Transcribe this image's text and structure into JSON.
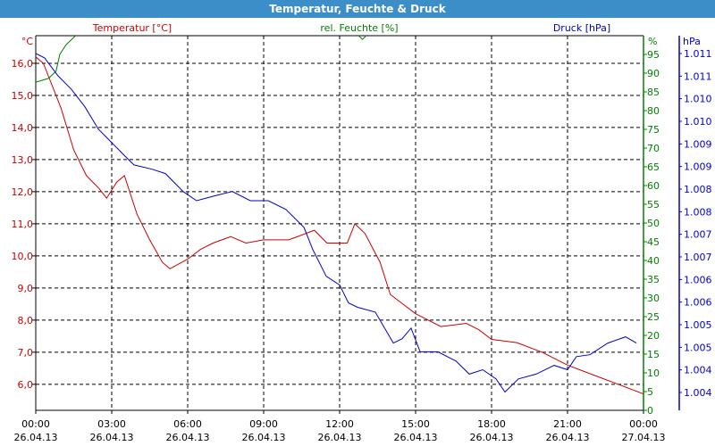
{
  "window": {
    "title": "Temperatur, Feuchte & Druck"
  },
  "chart_data": {
    "type": "line",
    "title": "Temperatur, Feuchte & Druck",
    "series_labels": {
      "temperature": "Temperatur [°C]",
      "humidity": "rel. Feuchte [%]",
      "pressure": "Druck [hPa]"
    },
    "axes": {
      "temperature": {
        "unit": "°C",
        "range": [
          5.19,
          16.86
        ],
        "ticks": [
          "16,0",
          "15,0",
          "14,0",
          "13,0",
          "12,0",
          "11,0",
          "10,0",
          "9,0",
          "8,0",
          "7,0",
          "6,0"
        ],
        "tick_values": [
          16,
          15,
          14,
          13,
          12,
          11,
          10,
          9,
          8,
          7,
          6
        ],
        "color": "#cc0000"
      },
      "humidity": {
        "unit": "%",
        "range": [
          0,
          100
        ],
        "ticks": [
          "95",
          "90",
          "85",
          "80",
          "75",
          "70",
          "65",
          "60",
          "55",
          "50",
          "45",
          "40",
          "35",
          "30",
          "25",
          "20",
          "15",
          "10",
          "5",
          "0"
        ],
        "tick_values": [
          95,
          90,
          85,
          80,
          75,
          70,
          65,
          60,
          55,
          50,
          45,
          40,
          35,
          30,
          25,
          20,
          15,
          10,
          5,
          0
        ],
        "color": "#008000"
      },
      "pressure": {
        "unit": "hPa",
        "range": [
          1.004,
          1.011
        ],
        "ticks": [
          "1.011",
          "1.011",
          "1.010",
          "1.010",
          "1.009",
          "1.009",
          "1.008",
          "1.008",
          "1.007",
          "1.007",
          "1.006",
          "1.006",
          "1.005",
          "1.005",
          "1.004",
          "1.004"
        ],
        "color": "#0000cc"
      },
      "x": {
        "range_hours": [
          0,
          24
        ],
        "ticks": [
          {
            "time": "00:00",
            "date": "26.04.13"
          },
          {
            "time": "03:00",
            "date": "26.04.13"
          },
          {
            "time": "06:00",
            "date": "26.04.13"
          },
          {
            "time": "09:00",
            "date": "26.04.13"
          },
          {
            "time": "12:00",
            "date": "26.04.13"
          },
          {
            "time": "15:00",
            "date": "26.04.13"
          },
          {
            "time": "18:00",
            "date": "26.04.13"
          },
          {
            "time": "21:00",
            "date": "26.04.13"
          },
          {
            "time": "00:00",
            "date": "27.04.13"
          }
        ]
      }
    },
    "grid": true,
    "series": [
      {
        "name": "Temperatur",
        "color": "#cc0000",
        "x": [
          0,
          0.3,
          0.6,
          1.0,
          1.5,
          2.0,
          2.5,
          2.8,
          3.2,
          3.5,
          4.0,
          4.5,
          5.0,
          5.3,
          6.0,
          6.5,
          7.0,
          7.7,
          8.3,
          9.0,
          10.0,
          11.0,
          11.5,
          12.0,
          12.3,
          12.6,
          13.0,
          13.6,
          14.0,
          14.5,
          15.0,
          15.5,
          16.0,
          17.0,
          17.5,
          18.0,
          19.0,
          20.0,
          21.0,
          22.0,
          23.0,
          24.0
        ],
        "y": [
          16.2,
          16.0,
          15.4,
          14.6,
          13.3,
          12.5,
          12.1,
          11.8,
          12.3,
          12.5,
          11.3,
          10.5,
          9.8,
          9.6,
          9.9,
          10.2,
          10.4,
          10.6,
          10.4,
          10.5,
          10.5,
          10.8,
          10.4,
          10.4,
          10.4,
          11.0,
          10.7,
          9.8,
          8.8,
          8.5,
          8.2,
          8.0,
          7.8,
          7.9,
          7.7,
          7.4,
          7.3,
          7.0,
          6.6,
          6.3,
          6.0,
          5.7
        ]
      },
      {
        "name": "rel. Feuchte",
        "color": "#008000",
        "x": [
          0,
          0.5,
          0.8,
          0.95,
          1.2,
          1.65,
          2.0,
          12.6,
          12.9,
          13.2
        ],
        "y": [
          87.6,
          88.6,
          90.5,
          95,
          97.6,
          100.5,
          103,
          101,
          99,
          101
        ]
      },
      {
        "name": "Druck",
        "color": "#0000cc",
        "x": [
          0,
          0.35,
          0.88,
          1.41,
          1.94,
          2.47,
          3.0,
          3.53,
          3.88,
          4.59,
          5.12,
          5.82,
          6.35,
          7.06,
          7.76,
          8.47,
          9.18,
          9.88,
          10.59,
          10.94,
          11.47,
          12.0,
          12.35,
          12.71,
          13.41,
          14.12,
          14.47,
          14.82,
          15.18,
          15.88,
          16.59,
          17.12,
          17.65,
          18.18,
          18.53,
          19.06,
          19.76,
          20.47,
          21.0,
          21.35,
          21.88,
          22.59,
          23.29,
          23.72
        ],
        "y": [
          1.011,
          1.01091,
          1.01054,
          1.01026,
          1.0099,
          1.00944,
          1.00916,
          1.00888,
          1.0087,
          1.00861,
          1.00852,
          1.00815,
          1.00796,
          1.00806,
          1.00815,
          1.00796,
          1.00796,
          1.00778,
          1.00741,
          1.00695,
          1.0064,
          1.00622,
          1.00585,
          1.00576,
          1.00566,
          1.00502,
          1.00511,
          1.00533,
          1.00484,
          1.00484,
          1.00465,
          1.00438,
          1.00447,
          1.00428,
          1.00401,
          1.00428,
          1.00438,
          1.00456,
          1.00447,
          1.00474,
          1.00478,
          1.00502,
          1.00515,
          1.00502
        ]
      }
    ]
  }
}
